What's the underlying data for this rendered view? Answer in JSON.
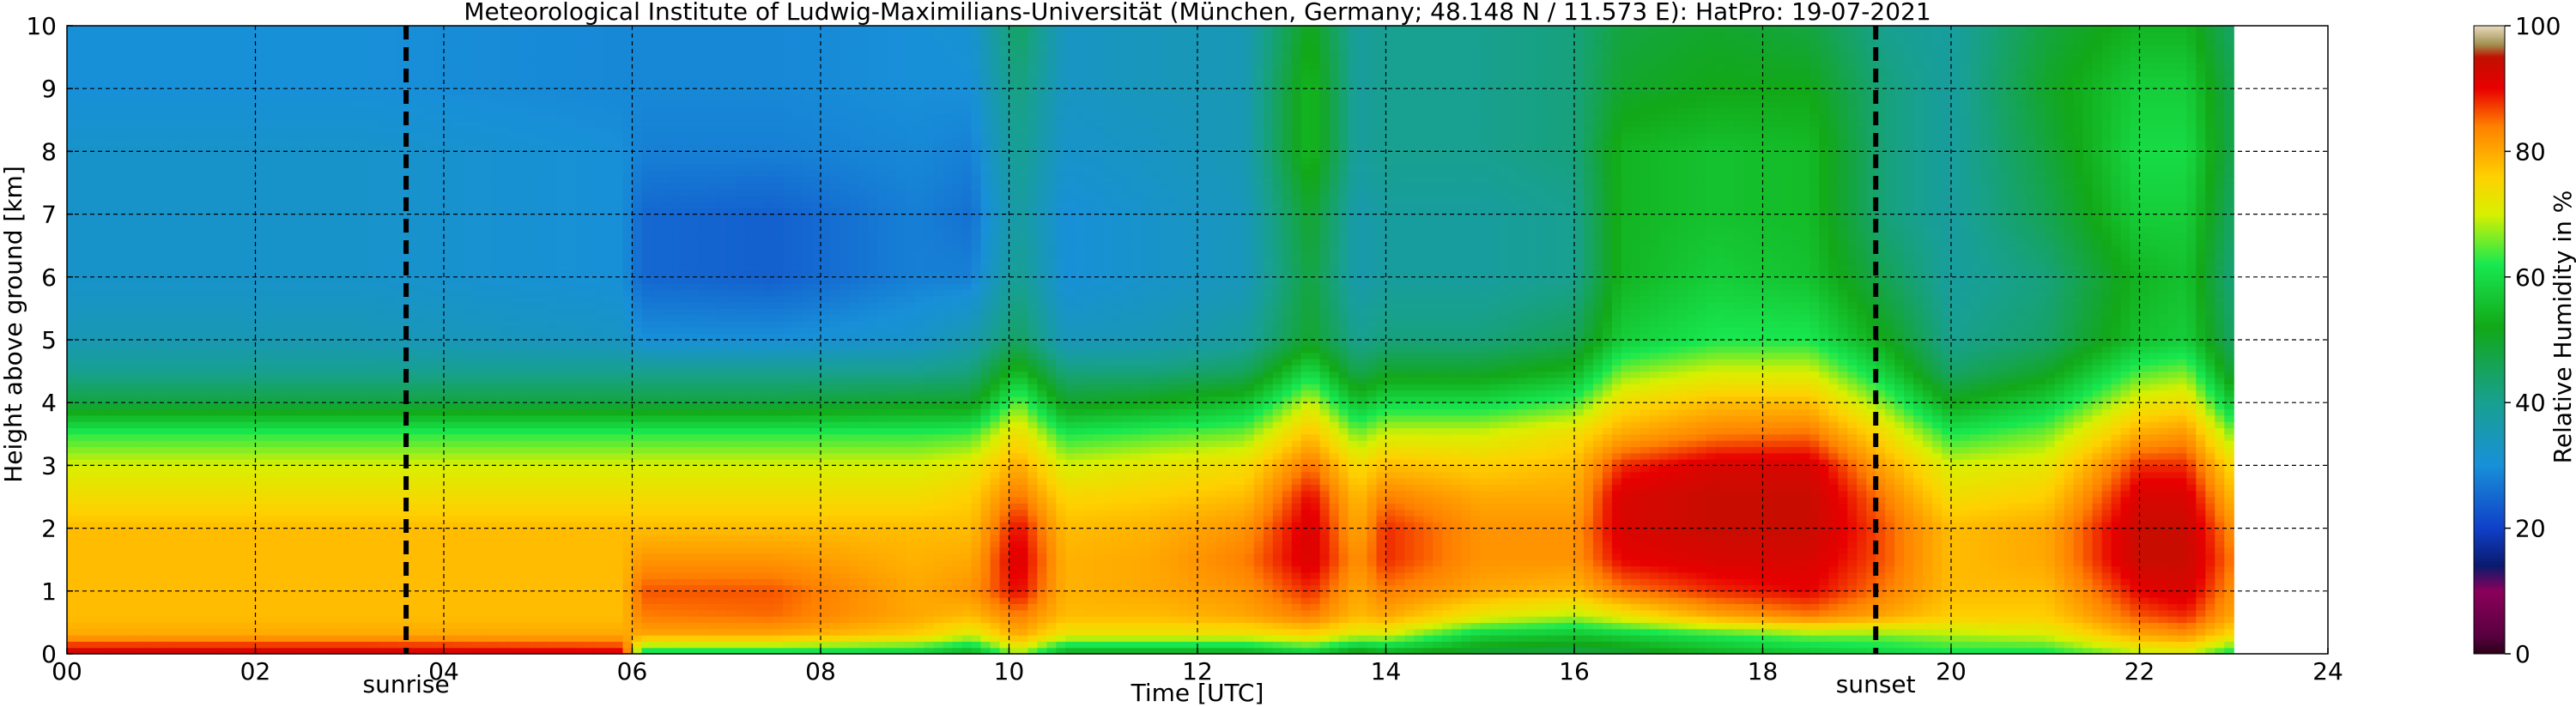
{
  "chart_data": {
    "type": "heatmap",
    "title": "Meteorological Institute of Ludwig-Maximilians-Universität (München, Germany; 48.148 N / 11.573 E):    HatPro: 19-07-2021",
    "xlabel": "Time [UTC]",
    "ylabel": "Height above ground [km]",
    "xlim": [
      0,
      24
    ],
    "ylim": [
      0,
      10
    ],
    "data_end_hour": 23.0,
    "x_ticks": [
      "00",
      "02",
      "04",
      "06",
      "08",
      "10",
      "12",
      "14",
      "16",
      "18",
      "20",
      "22",
      "24"
    ],
    "y_ticks": [
      "0",
      "1",
      "2",
      "3",
      "4",
      "5",
      "6",
      "7",
      "8",
      "9",
      "10"
    ],
    "grid": true,
    "markers": [
      {
        "label": "sunrise",
        "hour": 3.6
      },
      {
        "label": "sunset",
        "hour": 19.2
      }
    ],
    "colorbar": {
      "label": "Relative Humidity in %",
      "range": [
        0,
        100
      ],
      "ticks": [
        "0",
        "20",
        "40",
        "60",
        "80",
        "100"
      ],
      "stops": [
        {
          "v": 0,
          "color": "#2a0018"
        },
        {
          "v": 3,
          "color": "#5a0040"
        },
        {
          "v": 10,
          "color": "#8a005a"
        },
        {
          "v": 14,
          "color": "#0a1a6e"
        },
        {
          "v": 20,
          "color": "#1040c8"
        },
        {
          "v": 30,
          "color": "#1890d8"
        },
        {
          "v": 40,
          "color": "#18a090"
        },
        {
          "v": 52,
          "color": "#12a818"
        },
        {
          "v": 62,
          "color": "#18e850"
        },
        {
          "v": 70,
          "color": "#d8f000"
        },
        {
          "v": 76,
          "color": "#ffd000"
        },
        {
          "v": 84,
          "color": "#ff8000"
        },
        {
          "v": 90,
          "color": "#e80000"
        },
        {
          "v": 95,
          "color": "#c01000"
        },
        {
          "v": 97,
          "color": "#a09050"
        },
        {
          "v": 100,
          "color": "#e8dcc0"
        }
      ]
    },
    "field": {
      "heights_km": [
        0.05,
        0.3,
        0.6,
        1.0,
        1.5,
        2.0,
        2.5,
        3.0,
        3.5,
        4.0,
        4.5,
        5.0,
        6.0,
        7.0,
        8.0,
        9.0,
        10.0
      ],
      "columns": [
        {
          "hour": 0,
          "rh": [
            92,
            80,
            78,
            78,
            78,
            78,
            74,
            70,
            63,
            48,
            40,
            35,
            32,
            32,
            32,
            30,
            30
          ]
        },
        {
          "hour": 3,
          "rh": [
            92,
            80,
            78,
            78,
            78,
            78,
            74,
            70,
            63,
            48,
            40,
            35,
            32,
            32,
            32,
            30,
            30
          ]
        },
        {
          "hour": 5.9,
          "rh": [
            90,
            80,
            78,
            78,
            78,
            78,
            74,
            70,
            63,
            48,
            40,
            33,
            30,
            30,
            30,
            29,
            29
          ]
        },
        {
          "hour": 6.1,
          "rh": [
            62,
            80,
            84,
            86,
            82,
            78,
            74,
            70,
            63,
            48,
            40,
            30,
            25,
            25,
            28,
            29,
            29
          ]
        },
        {
          "hour": 7.5,
          "rh": [
            62,
            80,
            85,
            86,
            82,
            78,
            74,
            70,
            63,
            48,
            40,
            30,
            24,
            24,
            28,
            29,
            29
          ]
        },
        {
          "hour": 9.0,
          "rh": [
            60,
            76,
            80,
            80,
            79,
            78,
            74,
            70,
            63,
            50,
            40,
            32,
            28,
            28,
            29,
            30,
            30
          ]
        },
        {
          "hour": 9.6,
          "rh": [
            55,
            70,
            78,
            82,
            80,
            78,
            76,
            72,
            64,
            50,
            42,
            36,
            28,
            26,
            28,
            30,
            31
          ]
        },
        {
          "hour": 10.1,
          "rh": [
            70,
            80,
            84,
            90,
            92,
            90,
            85,
            80,
            74,
            66,
            55,
            45,
            40,
            38,
            40,
            42,
            45
          ]
        },
        {
          "hour": 10.6,
          "rh": [
            55,
            72,
            78,
            79,
            79,
            78,
            75,
            70,
            62,
            50,
            42,
            34,
            30,
            30,
            32,
            33,
            33
          ]
        },
        {
          "hour": 11.5,
          "rh": [
            55,
            72,
            78,
            80,
            80,
            79,
            76,
            72,
            64,
            52,
            42,
            35,
            32,
            32,
            33,
            34,
            34
          ]
        },
        {
          "hour": 12.5,
          "rh": [
            55,
            72,
            80,
            82,
            84,
            82,
            78,
            74,
            66,
            56,
            45,
            38,
            34,
            34,
            35,
            35,
            35
          ]
        },
        {
          "hour": 13.2,
          "rh": [
            60,
            75,
            84,
            88,
            92,
            92,
            90,
            85,
            78,
            70,
            60,
            50,
            48,
            50,
            55,
            55,
            52
          ]
        },
        {
          "hour": 13.7,
          "rh": [
            52,
            70,
            78,
            80,
            82,
            80,
            78,
            74,
            66,
            56,
            46,
            40,
            36,
            36,
            38,
            38,
            38
          ]
        },
        {
          "hour": 14.0,
          "rh": [
            55,
            70,
            80,
            84,
            88,
            88,
            84,
            78,
            70,
            60,
            50,
            42,
            38,
            38,
            40,
            40,
            40
          ]
        },
        {
          "hour": 15.0,
          "rh": [
            50,
            58,
            72,
            80,
            82,
            82,
            80,
            76,
            70,
            60,
            50,
            42,
            38,
            38,
            40,
            40,
            40
          ]
        },
        {
          "hour": 16.0,
          "rh": [
            48,
            56,
            68,
            78,
            82,
            82,
            80,
            78,
            74,
            64,
            54,
            46,
            40,
            40,
            42,
            42,
            42
          ]
        },
        {
          "hour": 16.5,
          "rh": [
            50,
            58,
            72,
            84,
            90,
            92,
            92,
            88,
            80,
            74,
            66,
            58,
            54,
            54,
            54,
            50,
            48
          ]
        },
        {
          "hour": 17.5,
          "rh": [
            55,
            62,
            80,
            88,
            92,
            94,
            94,
            92,
            84,
            78,
            70,
            62,
            58,
            56,
            56,
            52,
            50
          ]
        },
        {
          "hour": 18.5,
          "rh": [
            58,
            66,
            84,
            90,
            92,
            94,
            94,
            92,
            85,
            78,
            70,
            62,
            56,
            55,
            55,
            52,
            48
          ]
        },
        {
          "hour": 19.3,
          "rh": [
            60,
            66,
            80,
            84,
            86,
            86,
            84,
            80,
            74,
            66,
            58,
            52,
            46,
            42,
            42,
            42,
            40
          ]
        },
        {
          "hour": 20.0,
          "rh": [
            62,
            68,
            76,
            78,
            78,
            78,
            74,
            70,
            62,
            52,
            44,
            40,
            38,
            38,
            38,
            38,
            38
          ]
        },
        {
          "hour": 21.0,
          "rh": [
            62,
            70,
            76,
            78,
            80,
            80,
            76,
            72,
            66,
            58,
            50,
            44,
            42,
            46,
            48,
            50,
            48
          ]
        },
        {
          "hour": 22.0,
          "rh": [
            70,
            80,
            86,
            90,
            94,
            94,
            92,
            88,
            80,
            72,
            64,
            56,
            54,
            58,
            60,
            58,
            54
          ]
        },
        {
          "hour": 22.5,
          "rh": [
            72,
            82,
            88,
            92,
            94,
            94,
            92,
            88,
            82,
            74,
            66,
            58,
            56,
            58,
            60,
            58,
            54
          ]
        },
        {
          "hour": 23.0,
          "rh": [
            62,
            74,
            80,
            82,
            84,
            82,
            78,
            74,
            66,
            56,
            48,
            44,
            42,
            44,
            46,
            46,
            44
          ]
        }
      ]
    }
  }
}
